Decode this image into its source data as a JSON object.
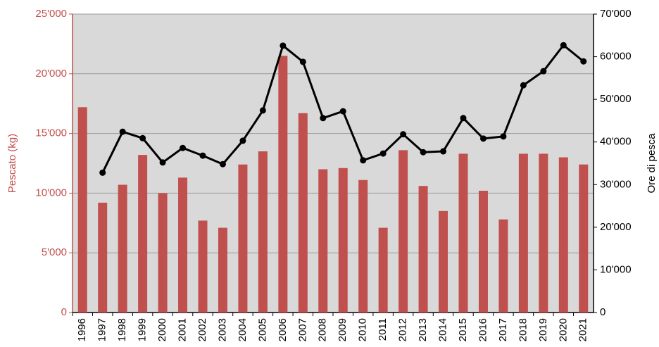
{
  "chart_data": {
    "type": "bar",
    "categories": [
      "1996",
      "1997",
      "1998",
      "1999",
      "2000",
      "2001",
      "2002",
      "2003",
      "2004",
      "2005",
      "2006",
      "2007",
      "2008",
      "2009",
      "2010",
      "2011",
      "2012",
      "2013",
      "2014",
      "2015",
      "2016",
      "2017",
      "2018",
      "2019",
      "2020",
      "2021"
    ],
    "series": [
      {
        "name": "Pescato (kg)",
        "type": "bar",
        "axis": "y",
        "color": "#c0504d",
        "values": [
          17200,
          9200,
          10700,
          13200,
          10000,
          11300,
          7700,
          7100,
          12400,
          13500,
          21500,
          16700,
          12000,
          12100,
          11100,
          7100,
          13600,
          10600,
          8500,
          13300,
          10200,
          7800,
          13300,
          13300,
          13000,
          12400
        ]
      },
      {
        "name": "Ore di pesca",
        "type": "line",
        "axis": "y2",
        "color": "#000000",
        "values": [
          null,
          32800,
          42400,
          40900,
          35200,
          38600,
          36800,
          34800,
          40300,
          47400,
          62600,
          58800,
          45600,
          47200,
          35700,
          37300,
          41800,
          37600,
          37800,
          45600,
          40800,
          41300,
          53300,
          56600,
          62700,
          58900
        ]
      }
    ],
    "ylabel": "Pescato (kg)",
    "y2label": "Ore di pesca",
    "ylim": [
      0,
      25000
    ],
    "yticks": [
      0,
      {
        "value": 5000,
        "label": "5'000"
      },
      {
        "value": 10000,
        "label": "10'000"
      },
      {
        "value": 15000,
        "label": "15'000"
      },
      {
        "value": 20000,
        "label": "20'000"
      },
      {
        "value": 25000,
        "label": "25'000"
      }
    ],
    "y2lim": [
      0,
      70000
    ],
    "y2ticks": [
      0,
      {
        "value": 10000,
        "label": "10'000"
      },
      {
        "value": 20000,
        "label": "20'000"
      },
      {
        "value": 30000,
        "label": "30'000"
      },
      {
        "value": 40000,
        "label": "40'000"
      },
      {
        "value": 50000,
        "label": "50'000"
      },
      {
        "value": 60000,
        "label": "60'000"
      },
      {
        "value": 70000,
        "label": "70'000"
      }
    ],
    "grid": true,
    "plot_background": "#d9d9d9",
    "yaxis_color": "#c0504d"
  }
}
